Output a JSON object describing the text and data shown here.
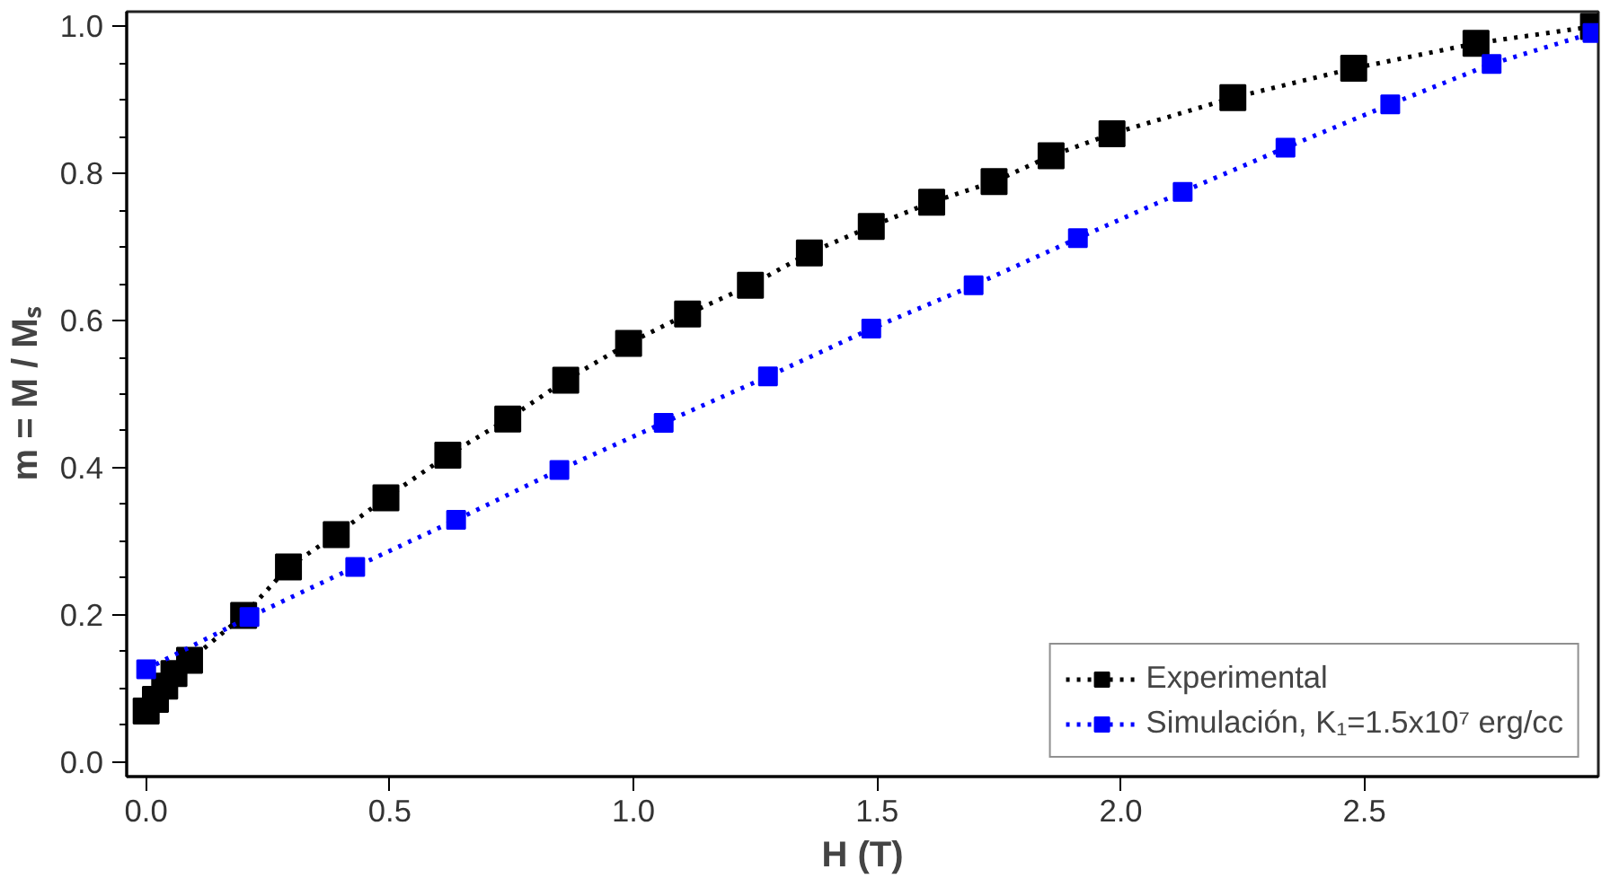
{
  "chart_data": {
    "type": "line",
    "xlabel": "H (T)",
    "ylabel": "m = M / Mₛ",
    "xlim": [
      -0.04,
      2.98
    ],
    "ylim": [
      -0.02,
      1.02
    ],
    "xticks": [
      {
        "value": 0,
        "label": "0.0"
      },
      0.5,
      {
        "value": 1,
        "label": "1.0"
      },
      1.5,
      {
        "value": 2,
        "label": "2.0"
      },
      2.5
    ],
    "yticks": [
      {
        "value": 0,
        "label": "0.0"
      },
      0.2,
      0.4,
      0.6,
      0.8,
      {
        "value": 1,
        "label": "1.0"
      }
    ],
    "grid": false,
    "legend": "bottom right",
    "marker": "square",
    "line_style": "dotted",
    "series": [
      {
        "name": "Experimental",
        "color": "#000000",
        "x": [
          0,
          0.019,
          0.038,
          0.057,
          0.089,
          0.2,
          0.292,
          0.39,
          0.492,
          0.619,
          0.742,
          0.861,
          0.99,
          1.111,
          1.24,
          1.361,
          1.488,
          1.612,
          1.74,
          1.857,
          1.982,
          2.23,
          2.478,
          2.729,
          2.97
        ],
        "values": [
          0.069,
          0.085,
          0.103,
          0.12,
          0.138,
          0.199,
          0.265,
          0.309,
          0.359,
          0.417,
          0.466,
          0.519,
          0.569,
          0.609,
          0.648,
          0.692,
          0.728,
          0.761,
          0.789,
          0.824,
          0.854,
          0.903,
          0.943,
          0.977,
          1.0
        ]
      },
      {
        "name": "Simulación, K₁=1.5x10⁷ erg/cc",
        "color": "#0000ff",
        "x": [
          0,
          0.212,
          0.429,
          0.636,
          0.848,
          1.062,
          1.276,
          1.488,
          1.698,
          1.912,
          2.127,
          2.338,
          2.553,
          2.761,
          2.968
        ],
        "values": [
          0.126,
          0.197,
          0.265,
          0.329,
          0.397,
          0.461,
          0.524,
          0.589,
          0.648,
          0.712,
          0.775,
          0.835,
          0.894,
          0.949,
          0.991
        ]
      }
    ]
  }
}
